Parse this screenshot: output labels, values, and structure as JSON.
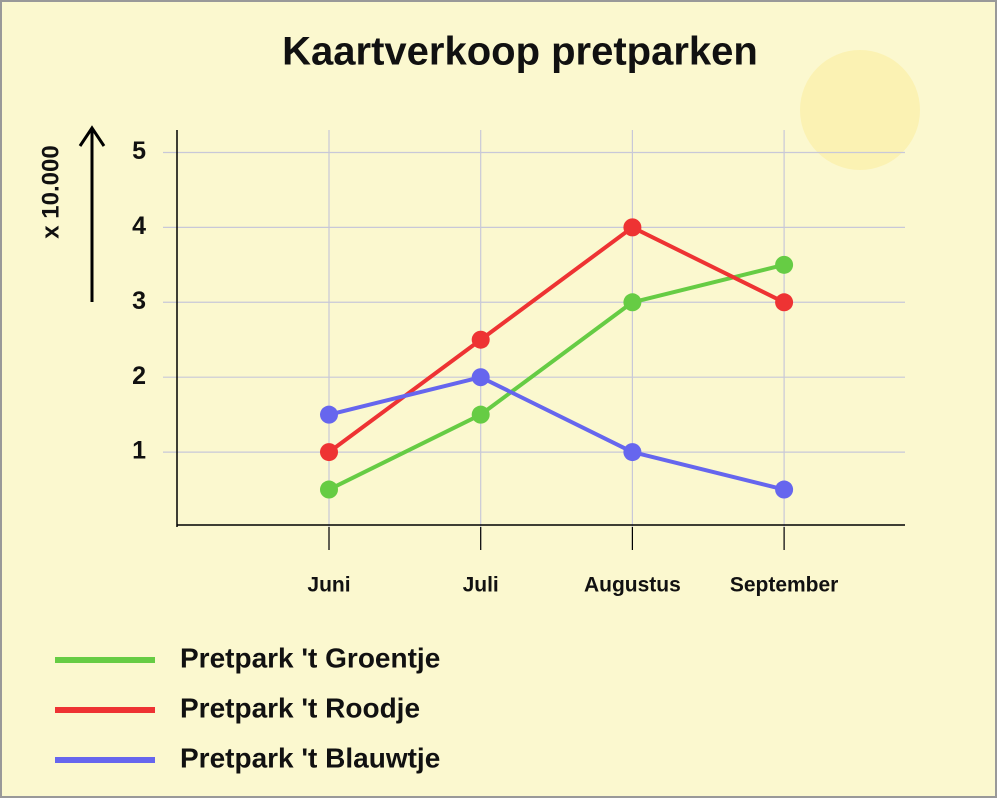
{
  "chart_data": {
    "type": "line",
    "title": "Kaartverkoop pretparken",
    "y_label": "x 10.000",
    "categories": [
      "Juni",
      "Juli",
      "Augustus",
      "September"
    ],
    "series": [
      {
        "name": "Pretpark 't Groentje",
        "color": "#66cc44",
        "values": [
          0.5,
          1.5,
          3,
          3.5
        ]
      },
      {
        "name": "Pretpark 't Roodje",
        "color": "#ee3333",
        "values": [
          1,
          2.5,
          4,
          3
        ]
      },
      {
        "name": "Pretpark 't Blauwtje",
        "color": "#6666ee",
        "values": [
          1.5,
          2,
          1,
          0.5
        ]
      }
    ],
    "ylim": [
      0,
      5.3
    ],
    "yticks": [
      1,
      2,
      3,
      4,
      5
    ],
    "grid": true,
    "legend": "bottom-left"
  }
}
